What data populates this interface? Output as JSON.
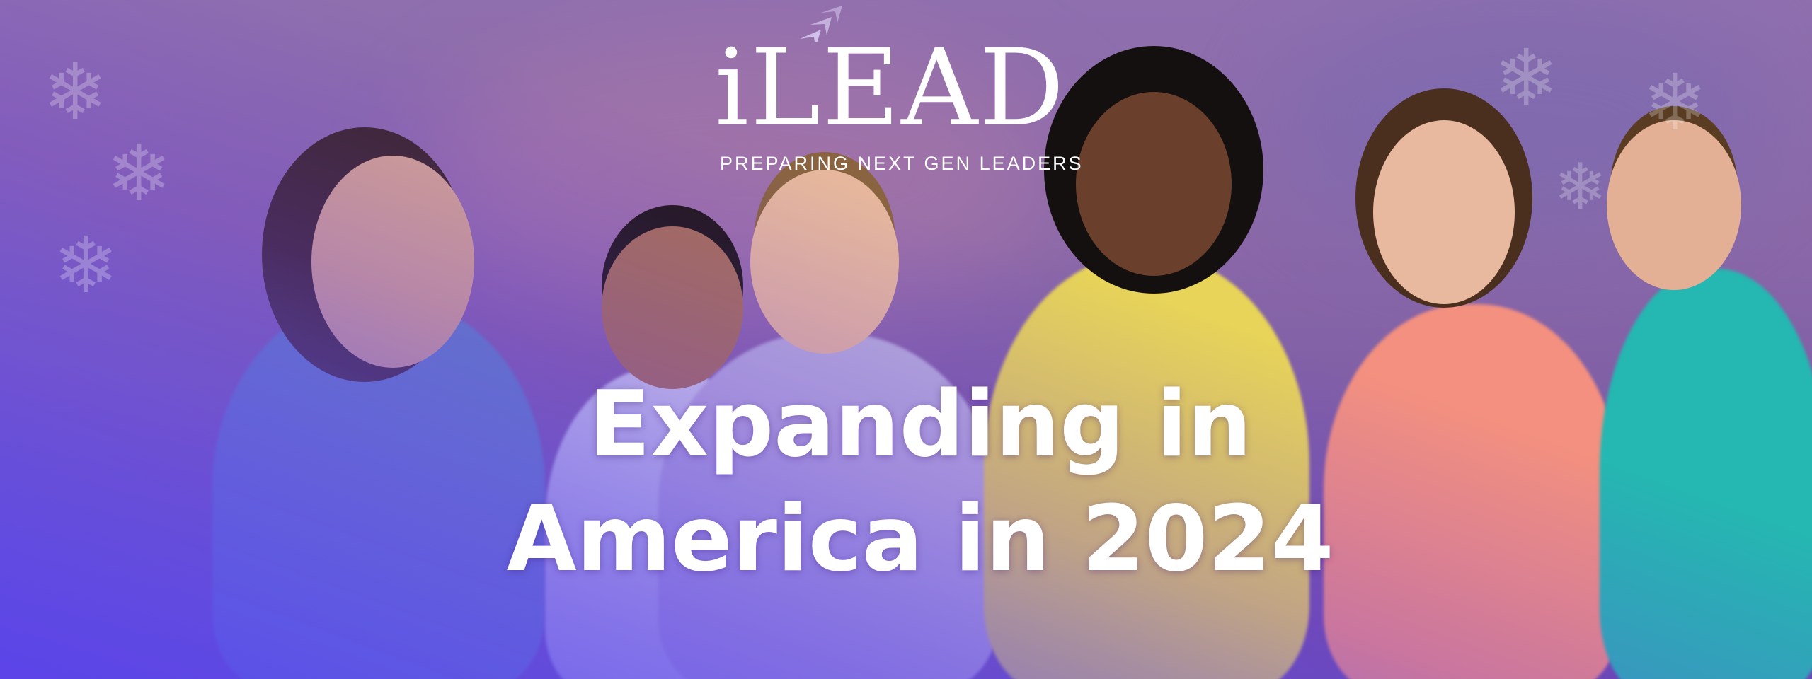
{
  "logo": {
    "wordmark": "iLEAD",
    "tagline": "PREPARING NEXT GEN LEADERS"
  },
  "headline": {
    "line1": "Expanding in",
    "line2": "America in 2024"
  },
  "colors": {
    "background": "#8a68a8",
    "overlay_purple": "#6428f0",
    "overlay_cyan": "#28c8f0",
    "text": "#ffffff"
  },
  "icons": [
    "snowflake-icon",
    "arrow-chevrons-icon"
  ]
}
